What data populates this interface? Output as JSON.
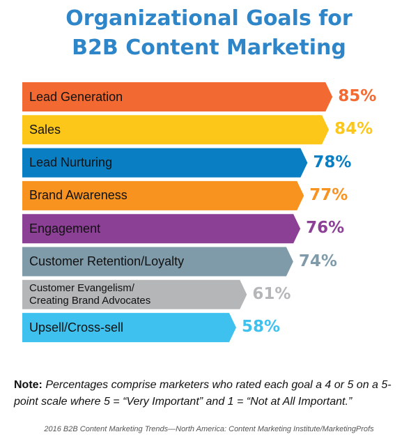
{
  "title": {
    "line1": "Organizational Goals for",
    "line2": "B2B Content Marketing"
  },
  "chart_data": {
    "type": "bar",
    "orientation": "horizontal",
    "title": "Organizational Goals for B2B Content Marketing",
    "xlabel": "",
    "ylabel": "",
    "xlim": [
      0,
      100
    ],
    "unit": "%",
    "categories": [
      "Lead Generation",
      "Sales",
      "Lead Nurturing",
      "Brand Awareness",
      "Engagement",
      "Customer Retention/Loyalty",
      "Customer Evangelism/\nCreating Brand Advocates",
      "Upsell/Cross-sell"
    ],
    "values": [
      85,
      84,
      78,
      77,
      76,
      74,
      61,
      58
    ],
    "value_labels": [
      "85%",
      "84%",
      "78%",
      "77%",
      "76%",
      "74%",
      "61%",
      "58%"
    ],
    "colors": [
      "#f26a32",
      "#fcc718",
      "#0a7ec2",
      "#f7931e",
      "#8b3f95",
      "#7f9baa",
      "#b4b6b8",
      "#3ec1ef"
    ],
    "legend": "none",
    "grid": false
  },
  "note": {
    "lead": "Note:",
    "text": " Percentages comprise marketers who rated each goal a 4 or 5 on a 5-point scale where 5 = “Very Important” and 1 = “Not at All Important.”"
  },
  "source": "2016 B2B Content Marketing Trends—North America: Content Marketing Institute/MarketingProfs"
}
